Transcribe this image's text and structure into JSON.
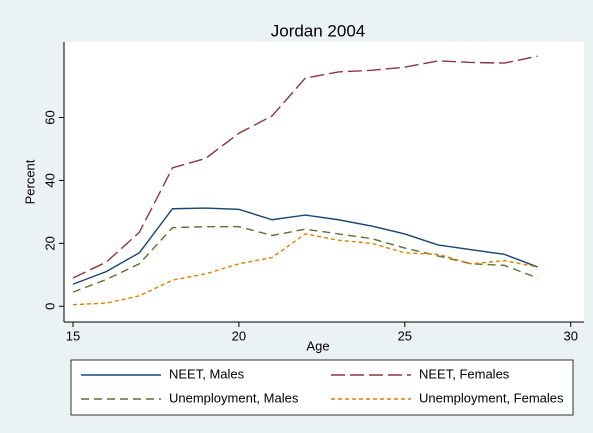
{
  "chart_data": {
    "type": "line",
    "title": "Jordan 2004",
    "x_label": "Age",
    "y_label": "Percent",
    "x": [
      15,
      16,
      17,
      18,
      19,
      20,
      21,
      22,
      23,
      24,
      25,
      26,
      27,
      28,
      29
    ],
    "series": [
      {
        "name": "NEET, Males",
        "color": "#1a476f",
        "dash": "solid",
        "values": [
          7,
          11,
          17,
          31,
          31.2,
          30.8,
          27.5,
          29,
          27.5,
          25.5,
          23,
          19.5,
          18,
          16.5,
          12.5
        ]
      },
      {
        "name": "NEET, Females",
        "color": "#90353b",
        "dash": "long",
        "values": [
          9,
          14,
          23.5,
          44,
          47,
          55,
          60.5,
          72.5,
          74.5,
          75,
          76,
          78,
          77.5,
          77.3,
          79.5
        ]
      },
      {
        "name": "Unemployment, Males",
        "color": "#55752f",
        "dash": "medium",
        "values": [
          4.5,
          8.5,
          13.5,
          25,
          25.3,
          25.3,
          22.5,
          24.5,
          23,
          21.5,
          18.5,
          16,
          13.5,
          13,
          9
        ]
      },
      {
        "name": "Unemployment, Females",
        "color": "#e37e00",
        "dash": "short",
        "values": [
          0.5,
          1,
          3.3,
          8.3,
          10.3,
          13.5,
          15.5,
          23,
          21,
          20,
          17,
          16.5,
          13.5,
          14.5,
          12.5
        ]
      }
    ],
    "xlim": [
      14.73,
      30.4
    ],
    "ylim": [
      -5,
      84
    ],
    "xticks": [
      15,
      20,
      25,
      30
    ],
    "yticks": [
      0,
      20,
      40,
      60
    ],
    "legend": "bottom"
  }
}
